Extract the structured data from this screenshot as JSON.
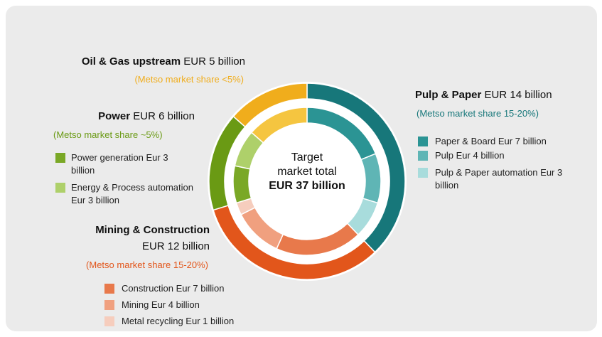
{
  "chart_data": {
    "type": "donut",
    "center_label": "Target market total",
    "total_label": "EUR 37 billion",
    "groups": [
      {
        "name": "Pulp & Paper",
        "value": 14,
        "value_label": "EUR 14 billion",
        "share": "(Metso market share 15-20%)",
        "color": "#17777a",
        "segments": [
          {
            "name": "Paper & Board Eur 7 billion",
            "value": 7,
            "color": "#2b9494"
          },
          {
            "name": "Pulp Eur 4 billion",
            "value": 4,
            "color": "#5fb5b5"
          },
          {
            "name": "Pulp & Paper automation Eur 3 billion",
            "value": 3,
            "color": "#a8dcdc"
          }
        ]
      },
      {
        "name": "Mining & Construction",
        "value": 12,
        "value_label": "EUR 12 billion",
        "share": "(Metso market share 15-20%)",
        "color": "#e2561b",
        "segments": [
          {
            "name": "Construction Eur 7 billion",
            "value": 7,
            "color": "#e8794b"
          },
          {
            "name": "Mining Eur 4 billion",
            "value": 4,
            "color": "#f0a07f"
          },
          {
            "name": "Metal recycling Eur 1 billion",
            "value": 1,
            "color": "#f6cdbd"
          }
        ]
      },
      {
        "name": "Power",
        "value": 6,
        "value_label": "EUR 6 billion",
        "share": "(Metso market share ~5%)",
        "color": "#6a9a14",
        "segments": [
          {
            "name": "Power generation Eur 3 billion",
            "value": 3,
            "color": "#7aa826"
          },
          {
            "name": "Energy & Process automation Eur 3 billion",
            "value": 3,
            "color": "#aed06a"
          }
        ]
      },
      {
        "name": "Oil & Gas upstream",
        "value": 5,
        "value_label": "EUR 5 billion",
        "share": "(Metso market share <5%)",
        "color": "#f0ad1c",
        "inner_color": "#f5c540",
        "segments": []
      }
    ]
  }
}
